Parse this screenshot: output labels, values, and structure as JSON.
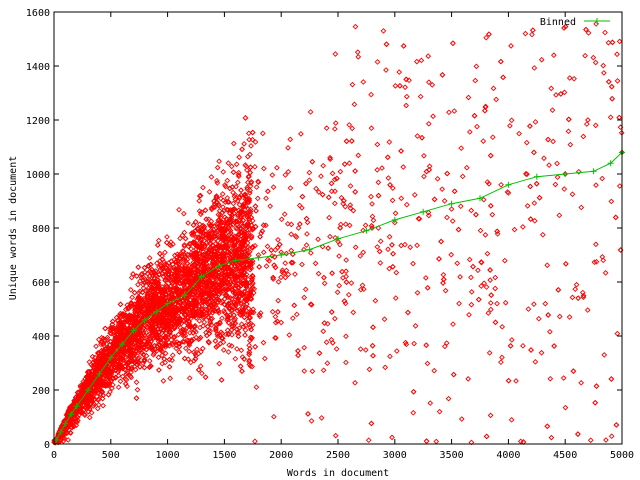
{
  "chart_data": {
    "type": "scatter",
    "title": "",
    "xlabel": "Words in document",
    "ylabel": "Unique words in document",
    "xlim": [
      0,
      5000
    ],
    "ylim": [
      0,
      1600
    ],
    "x_ticks": [
      0,
      500,
      1000,
      1500,
      2000,
      2500,
      3000,
      3500,
      4000,
      4500,
      5000
    ],
    "y_ticks": [
      0,
      200,
      400,
      600,
      800,
      1000,
      1200,
      1400,
      1600
    ],
    "x_tick_labels": [
      "0",
      "500",
      "1000",
      "1500",
      "2000",
      "2500",
      "3000",
      "3500",
      "4000",
      "4500",
      "5000"
    ],
    "y_tick_labels": [
      "0",
      "200",
      "400",
      "600",
      "800",
      "1000",
      "1200",
      "1400",
      "1600"
    ],
    "grid": false,
    "legend_position": "top-right",
    "series": [
      {
        "name": "",
        "kind": "scatter",
        "marker": "diamond",
        "color": "#ff0000",
        "description": "thousands of per-document points; dense band rising from origin, spreading widely above ~1500 words",
        "values": [
          [
            50,
            40
          ],
          [
            120,
            95
          ],
          [
            200,
            150
          ],
          [
            300,
            210
          ],
          [
            400,
            270
          ],
          [
            500,
            330
          ],
          [
            600,
            380
          ],
          [
            700,
            430
          ],
          [
            800,
            470
          ],
          [
            900,
            500
          ],
          [
            1000,
            530
          ],
          [
            1100,
            560
          ],
          [
            1200,
            580
          ],
          [
            1300,
            610
          ],
          [
            1400,
            630
          ],
          [
            1500,
            650
          ],
          [
            1600,
            690
          ],
          [
            1700,
            700
          ],
          [
            1800,
            700
          ],
          [
            2000,
            710
          ],
          [
            2200,
            720
          ],
          [
            2500,
            750
          ],
          [
            2800,
            800
          ],
          [
            3000,
            820
          ],
          [
            3500,
            870
          ],
          [
            4000,
            930
          ],
          [
            4500,
            1000
          ],
          [
            5000,
            1080
          ],
          [
            1700,
            950
          ],
          [
            2900,
            1530
          ],
          [
            4400,
            1440
          ],
          [
            4150,
            1520
          ],
          [
            1600,
            520
          ],
          [
            2000,
            450
          ],
          [
            2400,
            1170
          ],
          [
            3800,
            1250
          ],
          [
            4700,
            1200
          ],
          [
            4900,
            1210
          ],
          [
            3300,
            1340
          ],
          [
            2600,
            1040
          ],
          [
            3200,
            560
          ],
          [
            3900,
            520
          ],
          [
            4600,
            590
          ]
        ]
      },
      {
        "name": "Binned",
        "kind": "line",
        "marker": "plus",
        "color": "#00c000",
        "x": [
          20,
          60,
          100,
          150,
          200,
          300,
          400,
          500,
          600,
          700,
          800,
          900,
          1000,
          1150,
          1300,
          1450,
          1600,
          1800,
          2000,
          2250,
          2500,
          2750,
          3000,
          3250,
          3500,
          3750,
          4000,
          4250,
          4500,
          4750,
          4900,
          5000
        ],
        "y": [
          15,
          45,
          75,
          110,
          140,
          200,
          260,
          320,
          370,
          420,
          460,
          490,
          520,
          550,
          620,
          660,
          680,
          690,
          700,
          720,
          760,
          790,
          830,
          860,
          890,
          910,
          960,
          990,
          1000,
          1010,
          1040,
          1080
        ]
      }
    ]
  }
}
